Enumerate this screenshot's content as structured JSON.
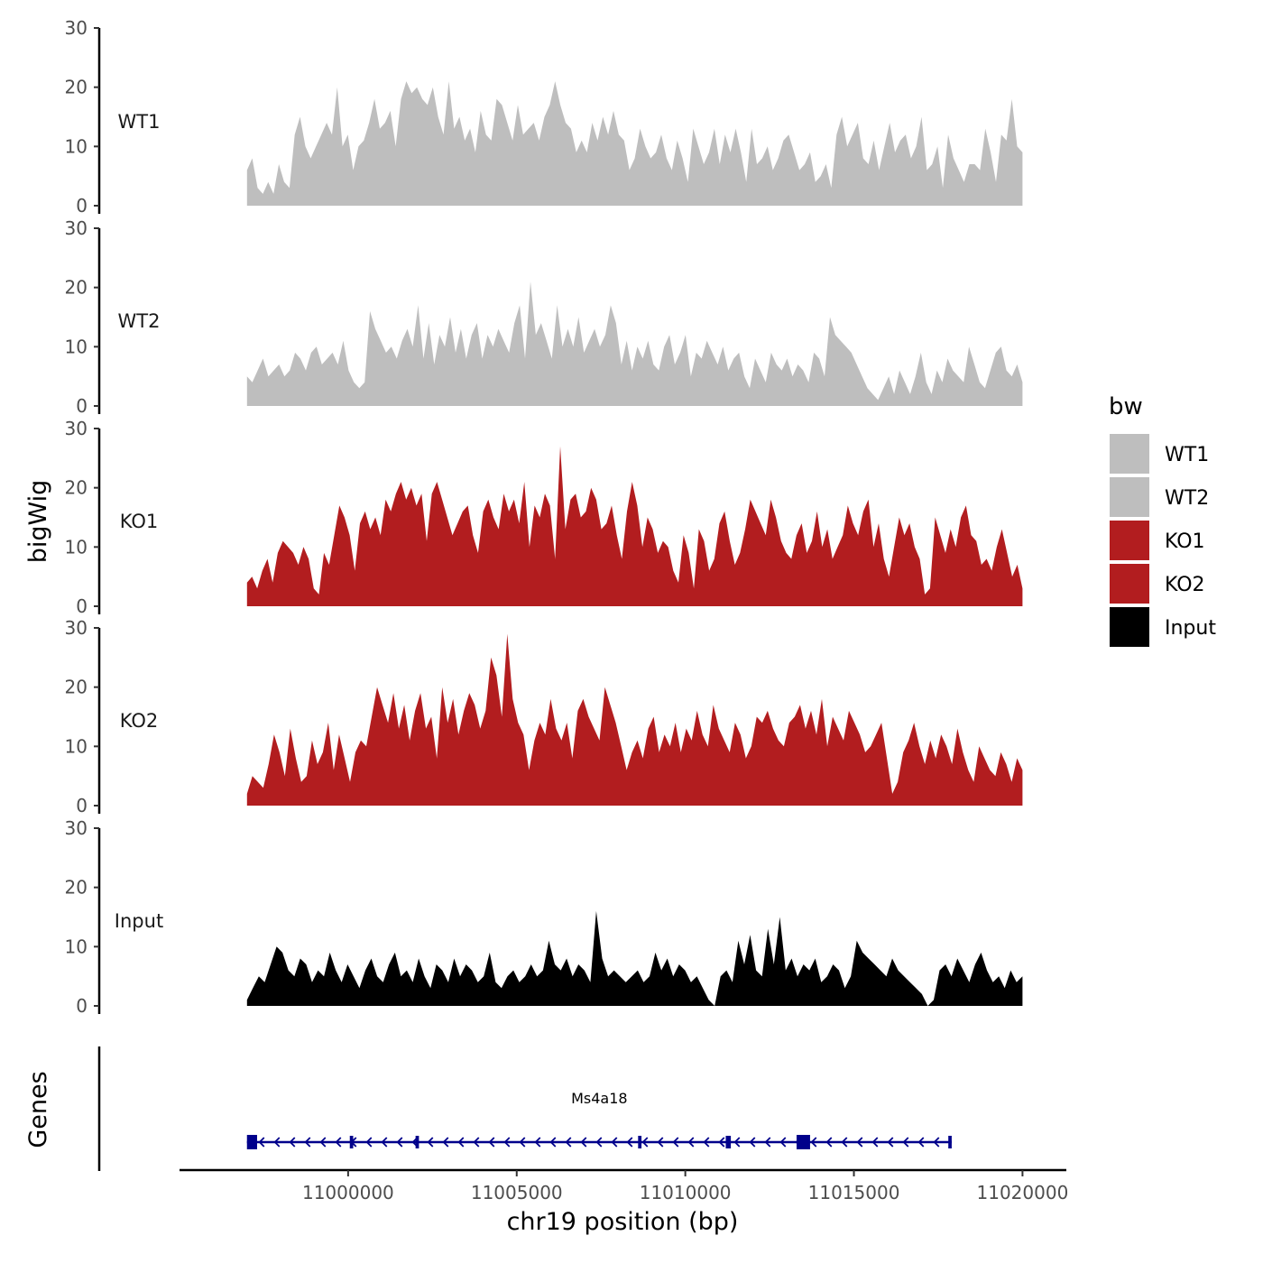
{
  "chart_data": {
    "type": "area",
    "xlabel": "chr19 position (bp)",
    "ylabel": "bigWig",
    "gene_panel_label": "Genes",
    "x_range": [
      10997000,
      11020000
    ],
    "x_axis_limits": [
      10995000,
      11021300
    ],
    "x_ticks": [
      11000000,
      11005000,
      11010000,
      11015000,
      11020000
    ],
    "x_tick_labels": [
      "11000000",
      "11005000",
      "11010000",
      "11015000",
      "11020000"
    ],
    "y_range": [
      0,
      30
    ],
    "y_ticks": [
      0,
      10,
      20,
      30
    ],
    "y_tick_labels": [
      "0",
      "10",
      "20",
      "30"
    ],
    "legend_title": "bw",
    "legend": [
      {
        "name": "WT1",
        "color": "#bebebe"
      },
      {
        "name": "WT2",
        "color": "#bebebe"
      },
      {
        "name": "KO1",
        "color": "#b21d1f"
      },
      {
        "name": "KO2",
        "color": "#b21d1f"
      },
      {
        "name": "Input",
        "color": "#000000"
      }
    ],
    "series": [
      {
        "name": "WT1",
        "color": "#bebebe",
        "values": [
          6,
          8,
          3,
          2,
          4,
          2,
          7,
          4,
          3,
          12,
          15,
          10,
          8,
          10,
          12,
          14,
          12,
          20,
          10,
          12,
          6,
          10,
          11,
          14,
          18,
          13,
          14,
          16,
          10,
          18,
          21,
          19,
          20,
          18,
          17,
          20,
          15,
          12,
          21,
          13,
          15,
          11,
          13,
          9,
          16,
          12,
          11,
          18,
          17,
          14,
          11,
          17,
          12,
          13,
          14,
          11,
          15,
          17,
          21,
          17,
          14,
          13,
          9,
          11,
          9,
          14,
          11,
          15,
          12,
          16,
          12,
          11,
          6,
          8,
          13,
          10,
          8,
          9,
          12,
          8,
          6,
          11,
          8,
          4,
          13,
          10,
          7,
          9,
          13,
          7,
          12,
          9,
          13,
          9,
          4,
          13,
          7,
          8,
          10,
          6,
          8,
          11,
          12,
          9,
          6,
          7,
          9,
          4,
          5,
          7,
          3,
          12,
          15,
          10,
          12,
          14,
          8,
          7,
          11,
          6,
          10,
          14,
          9,
          11,
          12,
          8,
          10,
          15,
          6,
          7,
          10,
          3,
          12,
          8,
          6,
          4,
          7,
          7,
          6,
          13,
          9,
          4,
          12,
          11,
          18,
          10,
          9
        ]
      },
      {
        "name": "WT2",
        "color": "#bebebe",
        "values": [
          5,
          4,
          6,
          8,
          5,
          6,
          7,
          5,
          6,
          9,
          8,
          6,
          9,
          10,
          7,
          8,
          9,
          7,
          11,
          6,
          4,
          3,
          4,
          16,
          13,
          11,
          9,
          10,
          8,
          11,
          13,
          10,
          17,
          8,
          14,
          7,
          12,
          10,
          15,
          9,
          13,
          8,
          12,
          14,
          8,
          12,
          10,
          13,
          11,
          9,
          14,
          17,
          8,
          21,
          12,
          14,
          11,
          8,
          17,
          10,
          13,
          10,
          15,
          9,
          11,
          13,
          10,
          12,
          17,
          14,
          7,
          11,
          6,
          10,
          8,
          11,
          7,
          6,
          10,
          12,
          7,
          9,
          12,
          5,
          9,
          8,
          11,
          9,
          7,
          10,
          6,
          8,
          9,
          5,
          3,
          8,
          6,
          4,
          9,
          7,
          6,
          8,
          5,
          7,
          6,
          4,
          9,
          8,
          5,
          15,
          12,
          11,
          10,
          9,
          7,
          5,
          3,
          2,
          1,
          3,
          5,
          2,
          6,
          4,
          2,
          5,
          9,
          4,
          2,
          6,
          4,
          8,
          6,
          5,
          4,
          10,
          7,
          4,
          3,
          6,
          9,
          10,
          6,
          5,
          7,
          4
        ]
      },
      {
        "name": "KO1",
        "color": "#b21d1f",
        "values": [
          4,
          5,
          3,
          6,
          8,
          4,
          9,
          11,
          10,
          9,
          7,
          10,
          8,
          3,
          2,
          9,
          7,
          12,
          17,
          15,
          12,
          6,
          14,
          16,
          13,
          15,
          12,
          18,
          16,
          19,
          21,
          18,
          20,
          17,
          19,
          11,
          19,
          21,
          18,
          15,
          12,
          14,
          16,
          17,
          12,
          9,
          16,
          18,
          15,
          13,
          19,
          16,
          18,
          14,
          21,
          10,
          17,
          15,
          19,
          17,
          8,
          27,
          13,
          18,
          19,
          15,
          16,
          20,
          18,
          13,
          14,
          17,
          12,
          8,
          16,
          21,
          17,
          10,
          15,
          13,
          9,
          11,
          10,
          6,
          4,
          12,
          9,
          3,
          13,
          11,
          6,
          8,
          14,
          16,
          11,
          7,
          9,
          13,
          18,
          16,
          14,
          12,
          18,
          15,
          11,
          9,
          8,
          12,
          14,
          9,
          11,
          16,
          10,
          13,
          8,
          10,
          12,
          17,
          14,
          12,
          16,
          18,
          10,
          14,
          8,
          5,
          10,
          15,
          12,
          14,
          10,
          8,
          2,
          3,
          15,
          12,
          9,
          13,
          10,
          15,
          17,
          12,
          11,
          7,
          8,
          6,
          10,
          13,
          9,
          5,
          7,
          3
        ]
      },
      {
        "name": "KO2",
        "color": "#b21d1f",
        "values": [
          2,
          5,
          4,
          3,
          7,
          12,
          9,
          5,
          13,
          8,
          4,
          5,
          11,
          7,
          9,
          14,
          6,
          12,
          8,
          4,
          9,
          11,
          10,
          15,
          20,
          17,
          14,
          19,
          13,
          17,
          11,
          16,
          19,
          13,
          15,
          8,
          20,
          14,
          18,
          12,
          16,
          19,
          17,
          13,
          16,
          25,
          22,
          15,
          29,
          18,
          14,
          12,
          6,
          11,
          14,
          12,
          18,
          13,
          11,
          14,
          8,
          16,
          18,
          15,
          13,
          11,
          20,
          17,
          14,
          10,
          6,
          9,
          11,
          8,
          13,
          15,
          9,
          12,
          10,
          14,
          9,
          13,
          11,
          16,
          12,
          10,
          17,
          13,
          11,
          9,
          14,
          12,
          8,
          10,
          15,
          14,
          16,
          13,
          11,
          10,
          14,
          15,
          17,
          13,
          16,
          12,
          18,
          10,
          15,
          13,
          11,
          16,
          14,
          12,
          9,
          10,
          12,
          14,
          8,
          2,
          4,
          9,
          11,
          14,
          10,
          7,
          11,
          8,
          12,
          10,
          7,
          13,
          9,
          6,
          4,
          10,
          8,
          6,
          5,
          9,
          7,
          4,
          8,
          6
        ]
      },
      {
        "name": "Input",
        "color": "#000000",
        "values": [
          1,
          3,
          5,
          4,
          7,
          10,
          9,
          6,
          5,
          8,
          7,
          4,
          6,
          5,
          9,
          6,
          4,
          7,
          5,
          3,
          6,
          8,
          5,
          4,
          7,
          9,
          5,
          6,
          4,
          8,
          5,
          3,
          7,
          6,
          4,
          8,
          5,
          7,
          6,
          4,
          5,
          9,
          4,
          3,
          5,
          6,
          4,
          5,
          7,
          5,
          6,
          11,
          7,
          6,
          8,
          5,
          7,
          6,
          4,
          16,
          8,
          5,
          6,
          5,
          4,
          5,
          6,
          4,
          5,
          9,
          6,
          8,
          5,
          7,
          6,
          4,
          5,
          3,
          1,
          0,
          5,
          6,
          4,
          11,
          7,
          12,
          6,
          5,
          13,
          7,
          15,
          6,
          8,
          5,
          7,
          6,
          8,
          4,
          5,
          7,
          6,
          3,
          5,
          11,
          9,
          8,
          7,
          6,
          5,
          8,
          6,
          5,
          4,
          3,
          2,
          0,
          1,
          6,
          7,
          5,
          8,
          6,
          4,
          7,
          9,
          6,
          4,
          5,
          3,
          6,
          4,
          5
        ]
      }
    ],
    "genes": [
      {
        "name": "Ms4a18",
        "start": 10997000,
        "end": 11017900,
        "strand": "-",
        "exons": [
          [
            10997000,
            10997300
          ],
          [
            11000050,
            11000150
          ],
          [
            11002000,
            11002100
          ],
          [
            11008600,
            11008700
          ],
          [
            11011200,
            11011350
          ],
          [
            11013300,
            11013700
          ],
          [
            11017800,
            11017900
          ]
        ]
      }
    ]
  }
}
